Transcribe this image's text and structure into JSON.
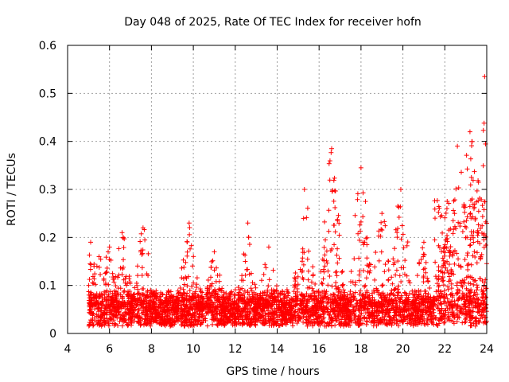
{
  "chart_data": {
    "type": "scatter",
    "title": "Day 048 of 2025, Rate Of TEC Index for receiver hofn",
    "xlabel": "GPS time / hours",
    "ylabel": "ROTI / TECUs",
    "xlim": [
      4,
      24
    ],
    "ylim": [
      0,
      0.6
    ],
    "xticks": [
      4,
      6,
      8,
      10,
      12,
      14,
      16,
      18,
      20,
      22,
      24
    ],
    "yticks": [
      0,
      0.1,
      0.2,
      0.3,
      0.4,
      0.5,
      0.6
    ],
    "xtick_labels": [
      "4",
      "6",
      "8",
      "10",
      "12",
      "14",
      "16",
      "18",
      "20",
      "22",
      "24"
    ],
    "ytick_labels": [
      "0",
      "0.1",
      "0.2",
      "0.3",
      "0.4",
      "0.5",
      "0.6"
    ],
    "grid": true,
    "marker": "plus",
    "series": [
      {
        "name": "ROTI",
        "color": "#ff0000",
        "x_start": 5.0,
        "x_end": 24.0,
        "baseline": [
          0.05,
          0.08
        ],
        "peaks": [
          {
            "x": 5.1,
            "y": 0.19
          },
          {
            "x": 5.5,
            "y": 0.16
          },
          {
            "x": 6.0,
            "y": 0.18
          },
          {
            "x": 6.6,
            "y": 0.21
          },
          {
            "x": 7.6,
            "y": 0.22
          },
          {
            "x": 9.8,
            "y": 0.23
          },
          {
            "x": 11.0,
            "y": 0.17
          },
          {
            "x": 12.6,
            "y": 0.23
          },
          {
            "x": 13.6,
            "y": 0.18
          },
          {
            "x": 15.3,
            "y": 0.3
          },
          {
            "x": 16.6,
            "y": 0.385
          },
          {
            "x": 18.0,
            "y": 0.345
          },
          {
            "x": 19.0,
            "y": 0.25
          },
          {
            "x": 19.9,
            "y": 0.3
          },
          {
            "x": 21.0,
            "y": 0.19
          },
          {
            "x": 22.1,
            "y": 0.26
          },
          {
            "x": 22.6,
            "y": 0.39
          },
          {
            "x": 23.2,
            "y": 0.42
          },
          {
            "x": 23.9,
            "y": 0.535
          }
        ]
      }
    ]
  }
}
